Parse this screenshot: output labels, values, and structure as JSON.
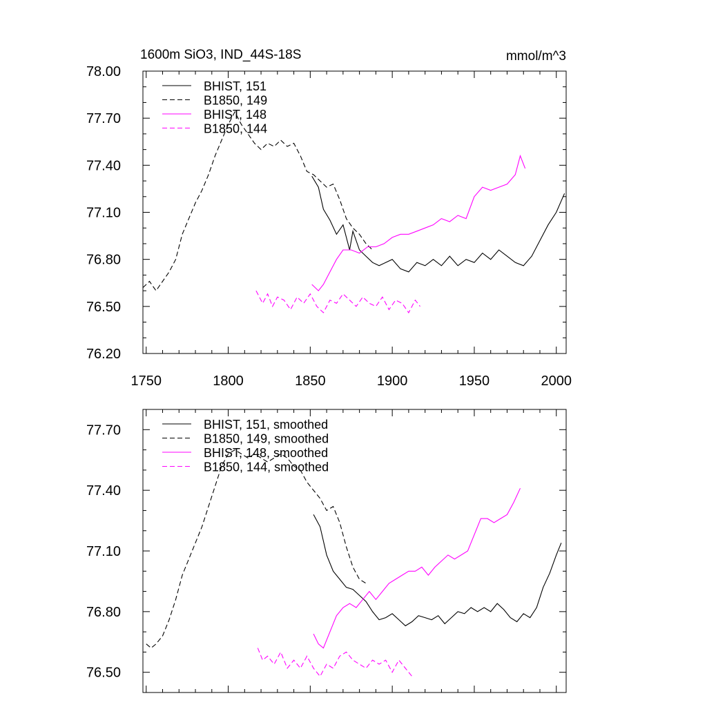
{
  "figure": {
    "title_left": "1600m SiO3, IND_44S-18S",
    "title_right": "mmol/m^3"
  },
  "chart_data": [
    {
      "type": "line",
      "title": "1600m SiO3, IND_44S-18S",
      "units": "mmol/m^3",
      "xlim": [
        1748,
        2006
      ],
      "ylim": [
        76.2,
        78.0
      ],
      "x_ticks": [
        1750,
        1800,
        1850,
        1900,
        1950,
        2000
      ],
      "x_tick_labels": [
        "1750",
        "1800",
        "1850",
        "1900",
        "1950",
        "2000"
      ],
      "y_ticks": [
        76.2,
        76.5,
        76.8,
        77.1,
        77.4,
        77.7,
        78.0
      ],
      "y_tick_labels": [
        "76.20",
        "76.50",
        "76.80",
        "77.10",
        "77.40",
        "77.70",
        "78.00"
      ],
      "legend_position": "top-left",
      "series": [
        {
          "name": "BHIST, 151",
          "color": "#000000",
          "dash": "solid",
          "x": [
            1851,
            1855,
            1858,
            1862,
            1866,
            1870,
            1874,
            1876,
            1880,
            1884,
            1888,
            1892,
            1896,
            1900,
            1905,
            1910,
            1915,
            1920,
            1925,
            1930,
            1935,
            1940,
            1945,
            1950,
            1955,
            1960,
            1965,
            1970,
            1975,
            1980,
            1985,
            1990,
            1995,
            2000,
            2005
          ],
          "y": [
            77.33,
            77.26,
            77.12,
            77.05,
            76.96,
            77.02,
            76.86,
            76.98,
            76.86,
            76.82,
            76.78,
            76.76,
            76.78,
            76.8,
            76.74,
            76.72,
            76.78,
            76.76,
            76.8,
            76.76,
            76.82,
            76.76,
            76.8,
            76.78,
            76.84,
            76.8,
            76.86,
            76.82,
            76.78,
            76.76,
            76.82,
            76.92,
            77.02,
            77.1,
            77.22
          ]
        },
        {
          "name": "B1850, 149",
          "color": "#000000",
          "dash": "dashed",
          "x": [
            1748,
            1752,
            1756,
            1760,
            1764,
            1768,
            1772,
            1776,
            1780,
            1784,
            1788,
            1792,
            1796,
            1800,
            1804,
            1808,
            1812,
            1816,
            1820,
            1824,
            1828,
            1832,
            1836,
            1840,
            1844,
            1848,
            1852,
            1856,
            1860,
            1864,
            1868,
            1872,
            1876,
            1880,
            1884,
            1888
          ],
          "y": [
            76.62,
            76.66,
            76.6,
            76.66,
            76.72,
            76.8,
            76.96,
            77.06,
            77.16,
            77.24,
            77.34,
            77.46,
            77.56,
            77.66,
            77.74,
            77.66,
            77.6,
            77.54,
            77.5,
            77.54,
            77.52,
            77.56,
            77.52,
            77.54,
            77.46,
            77.36,
            77.34,
            77.3,
            77.26,
            77.28,
            77.18,
            77.06,
            77.0,
            76.96,
            76.9,
            76.86
          ]
        },
        {
          "name": "BHIST, 148",
          "color": "#ff00ff",
          "dash": "solid",
          "x": [
            1851,
            1855,
            1858,
            1862,
            1866,
            1870,
            1875,
            1880,
            1885,
            1890,
            1895,
            1900,
            1905,
            1910,
            1915,
            1920,
            1925,
            1930,
            1935,
            1940,
            1945,
            1950,
            1955,
            1960,
            1965,
            1970,
            1975,
            1978,
            1981
          ],
          "y": [
            76.64,
            76.6,
            76.64,
            76.72,
            76.8,
            76.86,
            76.86,
            76.84,
            76.88,
            76.88,
            76.9,
            76.94,
            76.96,
            76.96,
            76.98,
            77.0,
            77.02,
            77.06,
            77.04,
            77.08,
            77.06,
            77.2,
            77.26,
            77.24,
            77.26,
            77.28,
            77.34,
            77.46,
            77.38
          ]
        },
        {
          "name": "B1850, 144",
          "color": "#ff00ff",
          "dash": "dashed",
          "x": [
            1817,
            1821,
            1824,
            1827,
            1830,
            1834,
            1838,
            1842,
            1846,
            1850,
            1854,
            1858,
            1862,
            1866,
            1870,
            1874,
            1878,
            1882,
            1886,
            1890,
            1894,
            1898,
            1902,
            1906,
            1910,
            1914,
            1917
          ],
          "y": [
            76.6,
            76.52,
            76.58,
            76.5,
            76.56,
            76.54,
            76.48,
            76.56,
            76.52,
            76.58,
            76.5,
            76.46,
            76.54,
            76.52,
            76.58,
            76.54,
            76.5,
            76.56,
            76.52,
            76.5,
            76.56,
            76.48,
            76.54,
            76.52,
            76.46,
            76.54,
            76.5
          ]
        }
      ]
    },
    {
      "type": "line",
      "xlim": [
        1748,
        2006
      ],
      "ylim": [
        76.4,
        77.8
      ],
      "x_ticks": [
        1750,
        1800,
        1850,
        1900,
        1950,
        2000
      ],
      "y_ticks": [
        76.5,
        76.8,
        77.1,
        77.4,
        77.7
      ],
      "y_tick_labels": [
        "76.50",
        "76.80",
        "77.10",
        "77.40",
        "77.70"
      ],
      "legend_position": "top-left",
      "series": [
        {
          "name": "BHIST, 151, smoothed",
          "color": "#000000",
          "dash": "solid",
          "x": [
            1852,
            1856,
            1860,
            1864,
            1868,
            1872,
            1876,
            1880,
            1884,
            1888,
            1892,
            1896,
            1900,
            1904,
            1908,
            1912,
            1916,
            1920,
            1924,
            1928,
            1932,
            1936,
            1940,
            1944,
            1948,
            1952,
            1956,
            1960,
            1964,
            1968,
            1972,
            1976,
            1980,
            1984,
            1988,
            1992,
            1996,
            2000,
            2003
          ],
          "y": [
            77.28,
            77.22,
            77.08,
            77.0,
            76.96,
            76.92,
            76.91,
            76.88,
            76.85,
            76.8,
            76.76,
            76.77,
            76.79,
            76.76,
            76.73,
            76.75,
            76.78,
            76.77,
            76.76,
            76.78,
            76.74,
            76.77,
            76.8,
            76.79,
            76.82,
            76.8,
            76.82,
            76.8,
            76.84,
            76.81,
            76.77,
            76.75,
            76.79,
            76.77,
            76.82,
            76.92,
            76.99,
            77.08,
            77.14
          ]
        },
        {
          "name": "B1850, 149, smoothed",
          "color": "#000000",
          "dash": "dashed",
          "x": [
            1750,
            1753,
            1756,
            1760,
            1764,
            1768,
            1772,
            1776,
            1780,
            1784,
            1788,
            1792,
            1796,
            1800,
            1804,
            1808,
            1812,
            1816,
            1820,
            1824,
            1828,
            1832,
            1836,
            1840,
            1844,
            1848,
            1852,
            1856,
            1860,
            1864,
            1868,
            1872,
            1876,
            1880,
            1884
          ],
          "y": [
            76.64,
            76.62,
            76.64,
            76.68,
            76.76,
            76.86,
            76.98,
            77.06,
            77.14,
            77.22,
            77.32,
            77.42,
            77.52,
            77.58,
            77.6,
            77.58,
            77.56,
            77.58,
            77.56,
            77.54,
            77.56,
            77.58,
            77.56,
            77.52,
            77.5,
            77.44,
            77.4,
            77.36,
            77.3,
            77.32,
            77.24,
            77.12,
            77.02,
            76.96,
            76.94
          ]
        },
        {
          "name": "BHIST, 148, smoothed",
          "color": "#ff00ff",
          "dash": "solid",
          "x": [
            1852,
            1855,
            1858,
            1862,
            1866,
            1870,
            1874,
            1878,
            1882,
            1886,
            1890,
            1894,
            1898,
            1902,
            1906,
            1910,
            1914,
            1918,
            1922,
            1926,
            1930,
            1934,
            1938,
            1942,
            1946,
            1950,
            1954,
            1958,
            1962,
            1966,
            1970,
            1974,
            1978
          ],
          "y": [
            76.69,
            76.64,
            76.62,
            76.7,
            76.78,
            76.82,
            76.84,
            76.82,
            76.86,
            76.9,
            76.86,
            76.9,
            76.94,
            76.96,
            76.98,
            77.0,
            77.0,
            77.02,
            76.98,
            77.02,
            77.05,
            77.08,
            77.06,
            77.08,
            77.1,
            77.18,
            77.26,
            77.26,
            77.24,
            77.26,
            77.28,
            77.34,
            77.41
          ]
        },
        {
          "name": "B1850, 144, smoothed",
          "color": "#ff00ff",
          "dash": "dashed",
          "x": [
            1818,
            1821,
            1824,
            1828,
            1832,
            1836,
            1840,
            1844,
            1848,
            1852,
            1856,
            1860,
            1864,
            1868,
            1872,
            1876,
            1880,
            1884,
            1888,
            1892,
            1896,
            1900,
            1904,
            1908,
            1912
          ],
          "y": [
            76.62,
            76.56,
            76.58,
            76.54,
            76.6,
            76.52,
            76.56,
            76.52,
            76.58,
            76.52,
            76.48,
            76.54,
            76.52,
            76.58,
            76.6,
            76.56,
            76.54,
            76.52,
            76.56,
            76.54,
            76.56,
            76.5,
            76.56,
            76.52,
            76.48
          ]
        }
      ]
    }
  ]
}
